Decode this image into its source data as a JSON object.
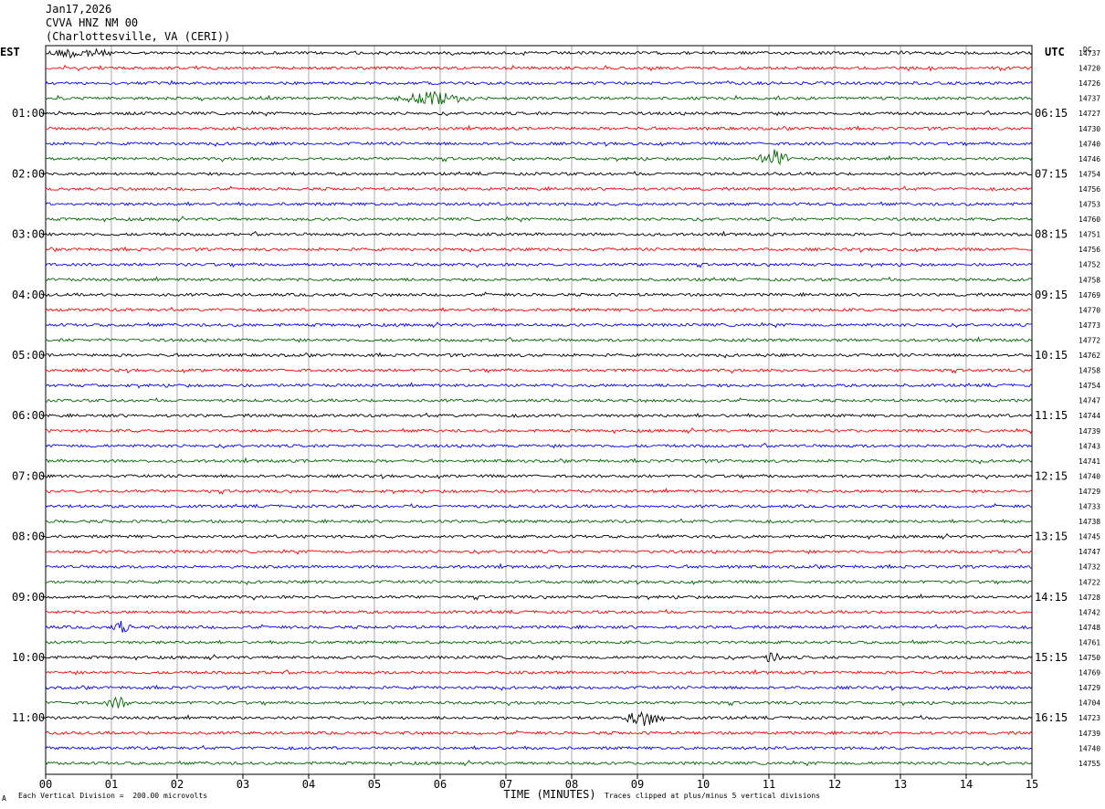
{
  "header": {
    "date": "Jan17,2026",
    "station": "CVVA HNZ NM 00",
    "location": "(Charlottesville, VA (CERI))"
  },
  "left_timezone": "EST",
  "right_timezone": "UTC",
  "dc_label": "DC",
  "footer": {
    "note_left": "Each Vertical Division =  200.00 microvolts",
    "note_right": "Traces clipped at plus/minus 5 vertical divisions",
    "corner_mark": "A"
  },
  "colors": {
    "trace_cycle": [
      "#000000",
      "#ff0000",
      "#0000ff",
      "#006400"
    ],
    "grid": "#000000"
  },
  "chart_data": {
    "type": "line",
    "xlabel": "TIME (MINUTES)",
    "xlim": [
      0,
      15
    ],
    "x_ticks": [
      "00",
      "01",
      "02",
      "03",
      "04",
      "05",
      "06",
      "07",
      "08",
      "09",
      "10",
      "11",
      "12",
      "13",
      "14",
      "15"
    ],
    "left_hour_labels": [
      "01:00",
      "02:00",
      "03:00",
      "04:00",
      "05:00",
      "06:00",
      "07:00",
      "08:00",
      "09:00",
      "10:00",
      "11:00"
    ],
    "right_hour_labels": [
      "06:15",
      "07:15",
      "08:15",
      "09:15",
      "10:15",
      "11:15",
      "12:15",
      "13:15",
      "14:15",
      "15:15",
      "16:15"
    ],
    "dc_offsets": [
      14737,
      14720,
      14726,
      14737,
      14727,
      14730,
      14740,
      14746,
      14754,
      14756,
      14753,
      14760,
      14751,
      14756,
      14752,
      14758,
      14769,
      14770,
      14773,
      14772,
      14762,
      14758,
      14754,
      14747,
      14744,
      14739,
      14743,
      14741,
      14740,
      14729,
      14733,
      14738,
      14745,
      14747,
      14732,
      14722,
      14728,
      14742,
      14748,
      14761,
      14750,
      14769,
      14729,
      14704,
      14723,
      14739,
      14740,
      14755
    ],
    "events": [
      {
        "trace": 0,
        "start_min": 0.0,
        "end_min": 1.0,
        "amp": 7
      },
      {
        "trace": 3,
        "start_min": 5.3,
        "end_min": 6.5,
        "amp": 8
      },
      {
        "trace": 7,
        "start_min": 10.85,
        "end_min": 11.3,
        "amp": 11
      },
      {
        "trace": 38,
        "start_min": 1.0,
        "end_min": 1.3,
        "amp": 8
      },
      {
        "trace": 40,
        "start_min": 10.9,
        "end_min": 11.2,
        "amp": 8
      },
      {
        "trace": 43,
        "start_min": 0.9,
        "end_min": 1.3,
        "amp": 7
      },
      {
        "trace": 44,
        "start_min": 8.8,
        "end_min": 9.4,
        "amp": 10
      }
    ]
  }
}
